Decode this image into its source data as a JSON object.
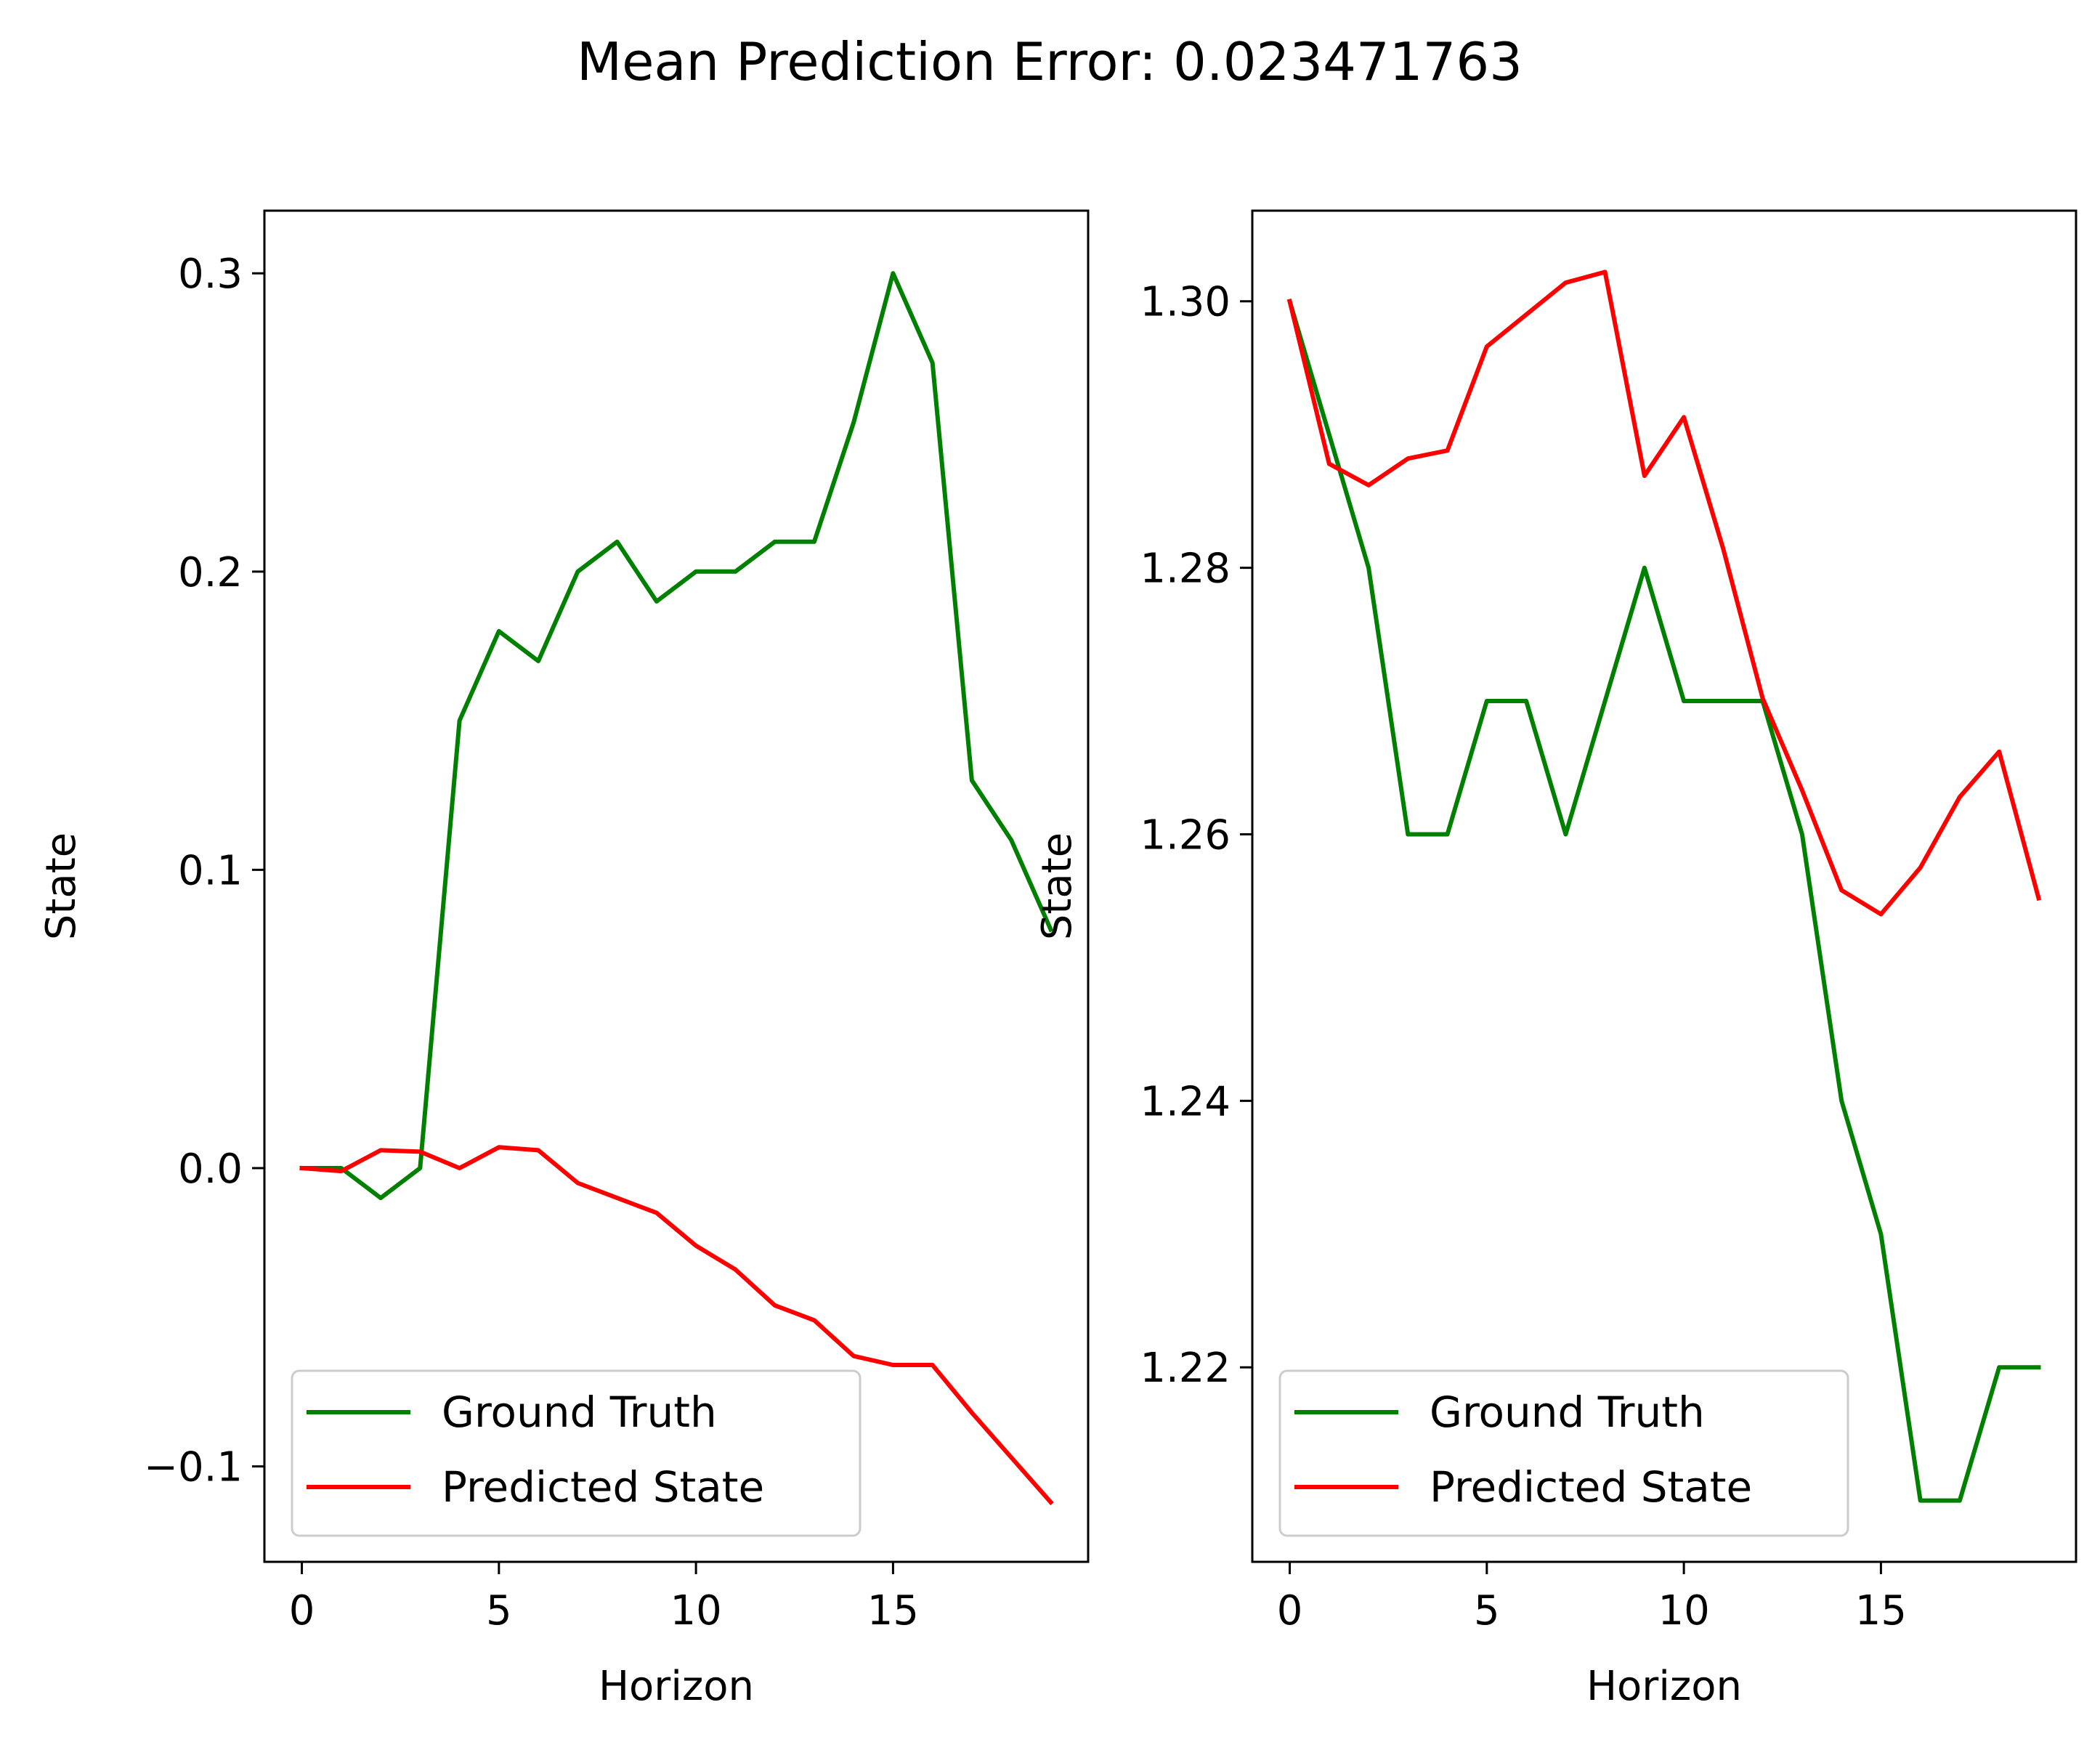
{
  "figure": {
    "title": "Mean Prediction Error: 0.023471763"
  },
  "chart_data": [
    {
      "type": "line",
      "xlabel": "Horizon",
      "ylabel": "State",
      "xlim": [
        -0.95,
        19.95
      ],
      "ylim": [
        -0.132,
        0.321
      ],
      "xticks": [
        0,
        5,
        10,
        15
      ],
      "xtick_labels": [
        "0",
        "5",
        "10",
        "15"
      ],
      "yticks": [
        -0.1,
        0.0,
        0.1,
        0.2,
        0.3
      ],
      "ytick_labels": [
        "−0.1",
        "0.0",
        "0.1",
        "0.2",
        "0.3"
      ],
      "grid": false,
      "legend_position": "lower-left",
      "x": [
        0,
        1,
        2,
        3,
        4,
        5,
        6,
        7,
        8,
        9,
        10,
        11,
        12,
        13,
        14,
        15,
        16,
        17,
        18,
        19
      ],
      "series": [
        {
          "name": "Ground Truth",
          "color": "#008000",
          "values": [
            0.0,
            0.0,
            -0.01,
            0.0,
            0.15,
            0.18,
            0.17,
            0.2,
            0.21,
            0.19,
            0.2,
            0.2,
            0.21,
            0.21,
            0.25,
            0.3,
            0.27,
            0.13,
            0.11,
            0.08
          ]
        },
        {
          "name": "Predicted State",
          "color": "#ff0000",
          "values": [
            0.0,
            -0.001,
            0.006,
            0.0055,
            0.0,
            0.007,
            0.006,
            -0.005,
            -0.01,
            -0.015,
            -0.026,
            -0.034,
            -0.046,
            -0.051,
            -0.063,
            -0.066,
            -0.066,
            -0.082,
            -0.097,
            -0.112
          ]
        }
      ]
    },
    {
      "type": "line",
      "xlabel": "Horizon",
      "ylabel": "State",
      "xlim": [
        -0.95,
        19.95
      ],
      "ylim": [
        1.2054,
        1.3068
      ],
      "xticks": [
        0,
        5,
        10,
        15
      ],
      "xtick_labels": [
        "0",
        "5",
        "10",
        "15"
      ],
      "yticks": [
        1.22,
        1.24,
        1.26,
        1.28,
        1.3
      ],
      "ytick_labels": [
        "1.22",
        "1.24",
        "1.26",
        "1.28",
        "1.30"
      ],
      "grid": false,
      "legend_position": "lower-left",
      "x": [
        0,
        1,
        2,
        3,
        4,
        5,
        6,
        7,
        8,
        9,
        10,
        11,
        12,
        13,
        14,
        15,
        16,
        17,
        18,
        19
      ],
      "series": [
        {
          "name": "Ground Truth",
          "color": "#008000",
          "values": [
            1.3,
            1.29,
            1.28,
            1.26,
            1.26,
            1.27,
            1.27,
            1.26,
            1.27,
            1.28,
            1.27,
            1.27,
            1.27,
            1.26,
            1.24,
            1.23,
            1.21,
            1.21,
            1.22,
            1.22
          ]
        },
        {
          "name": "Predicted State",
          "color": "#ff0000",
          "values": [
            1.3,
            1.2878,
            1.2862,
            1.2882,
            1.2888,
            1.2966,
            1.299,
            1.3014,
            1.3022,
            1.2869,
            1.2913,
            1.2814,
            1.2702,
            1.2633,
            1.2558,
            1.254,
            1.2575,
            1.2628,
            1.2662,
            1.2552
          ]
        }
      ]
    }
  ]
}
